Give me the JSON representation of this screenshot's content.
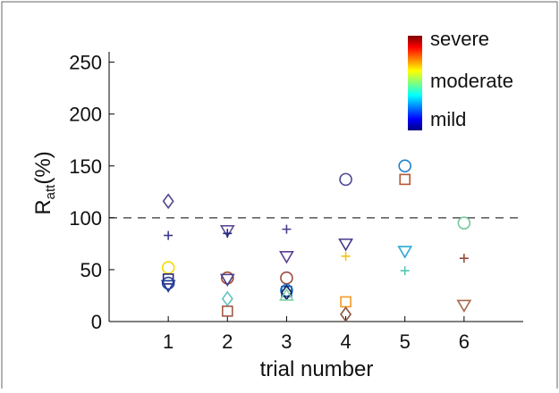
{
  "chart_data": {
    "type": "scatter",
    "title": "",
    "xlabel": "trial number",
    "ylabel_main": "R",
    "ylabel_sub": "att",
    "ylabel_tail": "(%)",
    "xlim": [
      0,
      7
    ],
    "ylim": [
      0,
      260
    ],
    "xticks": [
      "1",
      "2",
      "3",
      "4",
      "5",
      "6"
    ],
    "yticks": [
      "0",
      "50",
      "100",
      "150",
      "200",
      "250"
    ],
    "reference_line": {
      "y": 100,
      "style": "dashed",
      "color": "#333333"
    },
    "colorbar": {
      "position": "top-right",
      "labels": [
        "severe",
        "moderate",
        "mild"
      ],
      "colormap": "jet"
    },
    "points": [
      {
        "x": 1,
        "y": 116,
        "marker": "diamond",
        "color": "#55478f"
      },
      {
        "x": 1,
        "y": 83,
        "marker": "plus",
        "color": "#3b3b8a"
      },
      {
        "x": 1,
        "y": 52,
        "marker": "circle",
        "color": "#f2dc00"
      },
      {
        "x": 1,
        "y": 41,
        "marker": "square",
        "color": "#2a2a7a"
      },
      {
        "x": 1,
        "y": 37,
        "marker": "circle",
        "color": "#2b3f9a"
      },
      {
        "x": 1,
        "y": 35,
        "marker": "triangle-down",
        "color": "#1f3a96"
      },
      {
        "x": 2,
        "y": 88,
        "marker": "triangle-down",
        "color": "#5f4b94"
      },
      {
        "x": 2,
        "y": 85,
        "marker": "plus",
        "color": "#1e2a80"
      },
      {
        "x": 2,
        "y": 42,
        "marker": "circle",
        "color": "#9a4a2e"
      },
      {
        "x": 2,
        "y": 41,
        "marker": "triangle-down",
        "color": "#4a3d8f"
      },
      {
        "x": 2,
        "y": 22,
        "marker": "diamond",
        "color": "#62c0c0"
      },
      {
        "x": 2,
        "y": 10,
        "marker": "square",
        "color": "#a05a45"
      },
      {
        "x": 3,
        "y": 89,
        "marker": "plus",
        "color": "#4a3a8a"
      },
      {
        "x": 3,
        "y": 63,
        "marker": "triangle-down",
        "color": "#5a3f95"
      },
      {
        "x": 3,
        "y": 42,
        "marker": "circle",
        "color": "#9a4a40"
      },
      {
        "x": 3,
        "y": 30,
        "marker": "circle",
        "color": "#1770c9"
      },
      {
        "x": 3,
        "y": 29,
        "marker": "square",
        "color": "#1c5fb0"
      },
      {
        "x": 3,
        "y": 28,
        "marker": "diamond",
        "color": "#14205f"
      },
      {
        "x": 3,
        "y": 25,
        "marker": "triangle-up",
        "color": "#7fd1a7"
      },
      {
        "x": 4,
        "y": 137,
        "marker": "circle",
        "color": "#4d4790"
      },
      {
        "x": 4,
        "y": 75,
        "marker": "triangle-down",
        "color": "#443a8c"
      },
      {
        "x": 4,
        "y": 63,
        "marker": "plus",
        "color": "#f4c21a"
      },
      {
        "x": 4,
        "y": 19,
        "marker": "square",
        "color": "#f39a24"
      },
      {
        "x": 4,
        "y": 7,
        "marker": "diamond",
        "color": "#8a5640"
      },
      {
        "x": 5,
        "y": 150,
        "marker": "circle",
        "color": "#1f7fc8"
      },
      {
        "x": 5,
        "y": 137,
        "marker": "square",
        "color": "#b65836"
      },
      {
        "x": 5,
        "y": 68,
        "marker": "triangle-down",
        "color": "#2aa8d4"
      },
      {
        "x": 5,
        "y": 49,
        "marker": "plus",
        "color": "#54c9b4"
      },
      {
        "x": 6,
        "y": 95,
        "marker": "circle",
        "color": "#74c89b"
      },
      {
        "x": 6,
        "y": 61,
        "marker": "plus",
        "color": "#9a4a3a"
      },
      {
        "x": 6,
        "y": 16,
        "marker": "triangle-down",
        "color": "#a66a4a"
      }
    ]
  }
}
